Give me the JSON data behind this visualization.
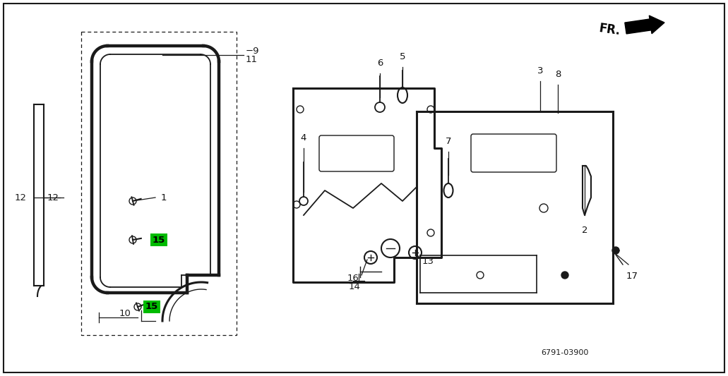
{
  "bg_color": "#ffffff",
  "border_color": "#1a1a1a",
  "line_color": "#1a1a1a",
  "label_color": "#111111",
  "highlight_color": "#00bb00",
  "fig_width": 10.31,
  "fig_height": 5.33,
  "dpi": 100,
  "part_number_text": "6791-03900",
  "fr_label": "FR."
}
